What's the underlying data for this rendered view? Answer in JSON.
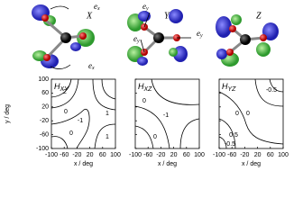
{
  "chart_data": [
    {
      "type": "contour",
      "title": "H",
      "title_subscript": "XY",
      "xlabel": "x / deg",
      "ylabel": "y / deg",
      "xlim": [
        -100,
        100
      ],
      "ylim": [
        -100,
        100
      ],
      "xticks": [
        -100,
        -60,
        -20,
        20,
        60,
        100
      ],
      "yticks": [
        -100,
        -60,
        -20,
        20,
        60,
        100
      ],
      "contour_labels": [
        2,
        1,
        0,
        -1,
        0,
        1
      ]
    },
    {
      "type": "contour",
      "title": "H",
      "title_subscript": "XZ",
      "xlabel": "x / deg",
      "xlim": [
        -100,
        100
      ],
      "ylim": [
        -100,
        100
      ],
      "xticks": [
        -100,
        -60,
        -20,
        20,
        60,
        100
      ],
      "yticks": [
        -100,
        -60,
        -20,
        20,
        60,
        100
      ],
      "contour_labels": [
        0,
        -1,
        0
      ]
    },
    {
      "type": "contour",
      "title": "H",
      "title_subscript": "YZ",
      "xlabel": "x / deg",
      "xlim": [
        -100,
        100
      ],
      "ylim": [
        -100,
        100
      ],
      "xticks": [
        -100,
        -60,
        -20,
        20,
        60,
        100
      ],
      "yticks": [
        -100,
        -60,
        -20,
        20,
        60,
        100
      ],
      "contour_labels": [
        -0.5,
        0,
        0.5,
        0,
        -0.5
      ]
    }
  ],
  "molecules": [
    {
      "label": "X",
      "vectors": [
        {
          "base": "e",
          "sub": "x"
        },
        {
          "base": "e",
          "sub": "x"
        }
      ]
    },
    {
      "label": "Y",
      "vectors": [
        {
          "base": "e",
          "sub": "y"
        },
        {
          "base": "e",
          "sub": "y"
        },
        {
          "base": "e",
          "sub": "y"
        }
      ]
    },
    {
      "label": "Z",
      "vectors": []
    }
  ]
}
